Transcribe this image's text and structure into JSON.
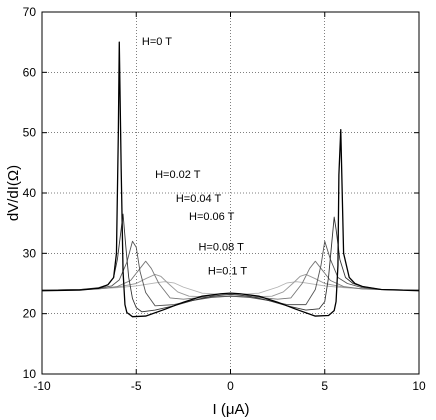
{
  "chart_data": {
    "type": "line",
    "title": "",
    "xlabel": "I (μA)",
    "ylabel": "dV/dI(Ω)",
    "xlim": [
      -10,
      10
    ],
    "ylim": [
      10,
      70
    ],
    "xticks": [
      -10,
      -5,
      0,
      5,
      10
    ],
    "yticks": [
      10,
      20,
      30,
      40,
      50,
      60,
      70
    ],
    "grid": true,
    "series": [
      {
        "name": "H=0 T",
        "color": "#000000",
        "x": [
          -10,
          -8,
          -7,
          -6.5,
          -6.2,
          -6.05,
          -5.95,
          -5.9,
          -5.8,
          -5.7,
          -5.6,
          -5.5,
          -5.2,
          -4.5,
          -3.5,
          -2.5,
          -1.5,
          -0.5,
          0,
          0.5,
          1.5,
          2.5,
          3.5,
          4.5,
          5.2,
          5.5,
          5.6,
          5.7,
          5.75,
          5.85,
          6.0,
          6.3,
          6.6,
          7,
          8,
          10
        ],
        "y": [
          23.8,
          23.9,
          24.2,
          24.8,
          26,
          30,
          50,
          65,
          44,
          27,
          21.5,
          20.2,
          19.5,
          19.6,
          20.7,
          21.9,
          22.9,
          23.3,
          23.4,
          23.3,
          22.9,
          21.9,
          20.7,
          19.6,
          19.7,
          20.5,
          22,
          28,
          43,
          50.5,
          30,
          26,
          25,
          24.5,
          24,
          23.8
        ]
      },
      {
        "name": "H=0.02 T",
        "color": "#333333",
        "x": [
          -10,
          -8,
          -7,
          -6.5,
          -6.2,
          -6.0,
          -5.8,
          -5.7,
          -5.55,
          -5.4,
          -5.2,
          -5.0,
          -4.7,
          -4.0,
          -3.0,
          -2.0,
          -1.0,
          0,
          1.0,
          2.0,
          3.0,
          4.0,
          4.7,
          5.0,
          5.2,
          5.35,
          5.5,
          5.6,
          5.8,
          6.1,
          6.5,
          7,
          8,
          10
        ],
        "y": [
          23.9,
          24,
          24.3,
          24.8,
          26,
          29,
          34,
          36.5,
          31,
          26,
          22.5,
          21,
          20.3,
          20.6,
          21.3,
          22.2,
          22.9,
          23.2,
          22.9,
          22.2,
          21.3,
          20.6,
          20.8,
          22,
          26,
          31,
          36,
          34,
          29,
          26,
          25,
          24.5,
          24,
          23.9
        ]
      },
      {
        "name": "H=0.04 T",
        "color": "#555555",
        "x": [
          -10,
          -8,
          -7,
          -6.3,
          -5.9,
          -5.5,
          -5.2,
          -5.0,
          -4.8,
          -4.5,
          -4.0,
          -3.0,
          -2.0,
          -1.0,
          0,
          1.0,
          2.0,
          3.0,
          4.0,
          4.5,
          4.8,
          5.0,
          5.3,
          5.7,
          6.2,
          7,
          8,
          10
        ],
        "y": [
          23.9,
          24,
          24.2,
          24.6,
          25.6,
          28.5,
          32,
          31,
          27,
          23.5,
          21.3,
          21.5,
          22.2,
          22.7,
          22.9,
          22.7,
          22.2,
          21.5,
          21.5,
          24,
          28,
          32,
          29,
          26,
          25,
          24.3,
          24,
          23.9
        ]
      },
      {
        "name": "H=0.06 T",
        "color": "#777777",
        "x": [
          -10,
          -8,
          -7,
          -6,
          -5.3,
          -4.8,
          -4.5,
          -4.2,
          -3.8,
          -3.2,
          -2.5,
          -1.5,
          0,
          1.5,
          2.5,
          3.2,
          3.8,
          4.2,
          4.5,
          4.8,
          5.3,
          6,
          7,
          8,
          10
        ],
        "y": [
          23.9,
          24,
          24.1,
          24.5,
          25.5,
          27.5,
          28.7,
          27.5,
          25,
          22.6,
          22.4,
          22.7,
          22.9,
          22.7,
          22.4,
          22.6,
          25,
          27.5,
          28.7,
          27.5,
          25.5,
          24.5,
          24.1,
          24,
          23.9
        ]
      },
      {
        "name": "H=0.08 T",
        "color": "#999999",
        "x": [
          -10,
          -8,
          -7,
          -6,
          -5,
          -4.5,
          -4.0,
          -3.7,
          -3.3,
          -2.8,
          -2.2,
          -1.2,
          0,
          1.2,
          2.2,
          2.8,
          3.3,
          3.7,
          4.0,
          4.5,
          5,
          6,
          7,
          8,
          10
        ],
        "y": [
          23.9,
          24,
          24.1,
          24.4,
          25,
          25.8,
          26.5,
          26.2,
          25,
          23.6,
          22.9,
          22.8,
          22.9,
          22.8,
          22.9,
          23.6,
          25,
          26.2,
          26.5,
          25.8,
          25,
          24.4,
          24.1,
          24,
          23.9
        ]
      },
      {
        "name": "H=0.1 T",
        "color": "#b3b3b3",
        "x": [
          -10,
          -8,
          -6,
          -5,
          -4,
          -3.5,
          -3.0,
          -2.5,
          -1.5,
          0,
          1.5,
          2.5,
          3.0,
          3.5,
          4,
          5,
          6,
          8,
          10
        ],
        "y": [
          23.9,
          24,
          24.3,
          24.6,
          25.1,
          25.3,
          25.1,
          24.4,
          23.4,
          23.1,
          23.4,
          24.4,
          25.1,
          25.3,
          25.1,
          24.6,
          24.3,
          24,
          23.9
        ]
      }
    ],
    "annotations": [
      {
        "text": "H=0 T",
        "x": -4.7,
        "y": 64.5
      },
      {
        "text": "H=0.02 T",
        "x": -4.0,
        "y": 42.5
      },
      {
        "text": "H=0.04 T",
        "x": -2.9,
        "y": 38.5
      },
      {
        "text": "H=0.06 T",
        "x": -2.2,
        "y": 35.5
      },
      {
        "text": "H=0.08 T",
        "x": -1.7,
        "y": 30.5
      },
      {
        "text": "H=0.1 T",
        "x": -1.2,
        "y": 26.5
      }
    ]
  }
}
